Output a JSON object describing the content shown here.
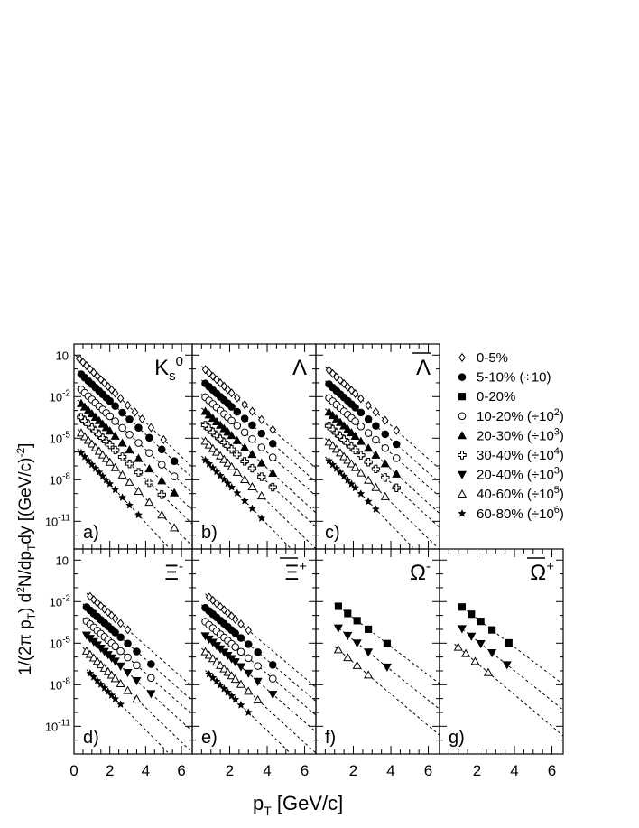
{
  "figure": {
    "ylabel_parts": [
      "1/(2π p",
      "T",
      ") d",
      "2",
      "N/dp",
      "T",
      "dy [(GeV/c)",
      "-2",
      "]"
    ],
    "xlabel_main": "p",
    "xlabel_sub": "T",
    "xlabel_unit": " [GeV/c]"
  },
  "legend": [
    {
      "marker": "diamond-open",
      "text": "0-5%",
      "sup": ""
    },
    {
      "marker": "circle-filled",
      "text": "5-10% (÷10)",
      "sup": ""
    },
    {
      "marker": "square-filled",
      "text": "0-20%",
      "sup": ""
    },
    {
      "marker": "circle-open",
      "text": "10-20% (÷10",
      "sup": "2",
      "tail": ")"
    },
    {
      "marker": "triangle-up-filled",
      "text": "20-30% (÷10",
      "sup": "3",
      "tail": ")"
    },
    {
      "marker": "cross-open",
      "text": "30-40% (÷10",
      "sup": "4",
      "tail": ")"
    },
    {
      "marker": "triangle-down-filled",
      "text": "20-40% (÷10",
      "sup": "3",
      "tail": ")"
    },
    {
      "marker": "triangle-up-open",
      "text": "40-60% (÷10",
      "sup": "5",
      "tail": ")"
    },
    {
      "marker": "star-filled",
      "text": "60-80% (÷10",
      "sup": "6",
      "tail": ")"
    }
  ],
  "chart_data": [
    {
      "panel": "a)",
      "particle": "K",
      "particle_sub": "s",
      "particle_sup": "0",
      "type": "scatter",
      "yscale": "log",
      "xlim": [
        0,
        6.6
      ],
      "xticks": [
        "0",
        "2",
        "4",
        "6"
      ],
      "ylim_exp": [
        -13,
        1.8
      ],
      "yticks": [
        "10",
        "10",
        "10",
        "10",
        "10"
      ],
      "ytick_sups": [
        "",
        "-2",
        "-5",
        "-8",
        "-11"
      ],
      "ytick_exps": [
        1,
        -2,
        -5,
        -8,
        -11
      ],
      "series": [
        {
          "marker": "diamond-open",
          "logN": 1.1,
          "T": 0.35,
          "x": [
            0.3,
            0.5,
            0.7,
            0.9,
            1.1,
            1.3,
            1.5,
            1.7,
            1.9,
            2.1,
            2.3,
            2.6,
            3.0,
            3.4,
            3.8,
            4.3,
            5.0
          ]
        },
        {
          "marker": "circle-filled",
          "logN": 0.1,
          "T": 0.36,
          "x": [
            0.4,
            0.6,
            0.8,
            1.0,
            1.2,
            1.4,
            1.6,
            1.8,
            2.0,
            2.3,
            2.7,
            3.1,
            3.6,
            4.2,
            4.9,
            5.6
          ]
        },
        {
          "marker": "circle-open",
          "logN": -1.0,
          "T": 0.36,
          "x": [
            0.4,
            0.6,
            0.8,
            1.0,
            1.2,
            1.4,
            1.6,
            1.8,
            2.0,
            2.3,
            2.7,
            3.1,
            3.6,
            4.2,
            4.9,
            5.6
          ]
        },
        {
          "marker": "triangle-up-filled",
          "logN": -2.0,
          "T": 0.35,
          "x": [
            0.4,
            0.6,
            0.8,
            1.0,
            1.2,
            1.4,
            1.6,
            1.8,
            2.0,
            2.3,
            2.7,
            3.1,
            3.6,
            4.2,
            4.9,
            5.6
          ]
        },
        {
          "marker": "cross-open",
          "logN": -3.0,
          "T": 0.35,
          "x": [
            0.4,
            0.6,
            0.8,
            1.0,
            1.2,
            1.4,
            1.6,
            1.8,
            2.0,
            2.3,
            2.7,
            3.1,
            3.6,
            4.2,
            4.9
          ]
        },
        {
          "marker": "triangle-up-open",
          "logN": -4.1,
          "T": 0.33,
          "x": [
            0.4,
            0.6,
            0.8,
            1.0,
            1.2,
            1.4,
            1.6,
            1.8,
            2.0,
            2.3,
            2.7,
            3.1,
            3.6,
            4.2,
            4.9,
            5.6
          ]
        },
        {
          "marker": "star-filled",
          "logN": -5.5,
          "T": 0.31,
          "x": [
            0.4,
            0.6,
            0.8,
            1.0,
            1.2,
            1.4,
            1.6,
            1.8,
            2.0,
            2.3,
            2.7,
            3.1,
            3.6
          ]
        }
      ]
    },
    {
      "panel": "b)",
      "particle": "Λ",
      "particle_sub": "",
      "particle_sup": "",
      "type": "scatter",
      "yscale": "log",
      "xlim": [
        0,
        6.6
      ],
      "xticks": [
        "",
        "2",
        "4",
        "6"
      ],
      "ylim_exp": [
        -13,
        1.8
      ],
      "series": [
        {
          "marker": "diamond-open",
          "logN": 0.8,
          "T": 0.36,
          "x": [
            0.7,
            0.9,
            1.1,
            1.3,
            1.5,
            1.7,
            1.9,
            2.1,
            2.4,
            2.8,
            3.2,
            3.7,
            4.3
          ]
        },
        {
          "marker": "circle-filled",
          "logN": -0.2,
          "T": 0.36,
          "x": [
            0.7,
            0.9,
            1.1,
            1.3,
            1.5,
            1.7,
            1.9,
            2.1,
            2.4,
            2.8,
            3.2,
            3.7,
            4.3
          ]
        },
        {
          "marker": "circle-open",
          "logN": -1.2,
          "T": 0.36,
          "x": [
            0.7,
            0.9,
            1.1,
            1.3,
            1.5,
            1.7,
            1.9,
            2.1,
            2.4,
            2.8,
            3.2,
            3.7,
            4.3
          ]
        },
        {
          "marker": "triangle-up-filled",
          "logN": -2.2,
          "T": 0.35,
          "x": [
            0.7,
            0.9,
            1.1,
            1.3,
            1.5,
            1.7,
            1.9,
            2.1,
            2.4,
            2.8,
            3.2,
            3.7,
            4.3
          ]
        },
        {
          "marker": "cross-open",
          "logN": -3.2,
          "T": 0.35,
          "x": [
            0.7,
            0.9,
            1.1,
            1.3,
            1.5,
            1.7,
            1.9,
            2.1,
            2.4,
            2.8,
            3.2,
            3.7,
            4.3
          ]
        },
        {
          "marker": "triangle-up-open",
          "logN": -4.3,
          "T": 0.33,
          "x": [
            0.7,
            0.9,
            1.1,
            1.3,
            1.5,
            1.7,
            1.9,
            2.1,
            2.4,
            2.8,
            3.2,
            3.7
          ]
        },
        {
          "marker": "star-filled",
          "logN": -5.6,
          "T": 0.31,
          "x": [
            0.7,
            0.9,
            1.1,
            1.3,
            1.5,
            1.7,
            1.9,
            2.1,
            2.4,
            2.8,
            3.2,
            3.7
          ]
        }
      ]
    },
    {
      "panel": "c)",
      "particle": "Λ",
      "particle_sub": "",
      "particle_sup": "",
      "overline": true,
      "type": "scatter",
      "yscale": "log",
      "xlim": [
        0,
        6.6
      ],
      "xticks": [
        "",
        "2",
        "4",
        "6"
      ],
      "ylim_exp": [
        -13,
        1.8
      ],
      "series": [
        {
          "marker": "diamond-open",
          "logN": 0.75,
          "T": 0.36,
          "x": [
            0.7,
            0.9,
            1.1,
            1.3,
            1.5,
            1.7,
            1.9,
            2.1,
            2.4,
            2.8,
            3.2,
            3.7,
            4.3
          ]
        },
        {
          "marker": "circle-filled",
          "logN": -0.25,
          "T": 0.36,
          "x": [
            0.7,
            0.9,
            1.1,
            1.3,
            1.5,
            1.7,
            1.9,
            2.1,
            2.4,
            2.8,
            3.2,
            3.7,
            4.3
          ]
        },
        {
          "marker": "circle-open",
          "logN": -1.25,
          "T": 0.36,
          "x": [
            0.7,
            0.9,
            1.1,
            1.3,
            1.5,
            1.7,
            1.9,
            2.1,
            2.4,
            2.8,
            3.2,
            3.7,
            4.3
          ]
        },
        {
          "marker": "triangle-up-filled",
          "logN": -2.25,
          "T": 0.35,
          "x": [
            0.7,
            0.9,
            1.1,
            1.3,
            1.5,
            1.7,
            1.9,
            2.1,
            2.4,
            2.8,
            3.2,
            3.7,
            4.3
          ]
        },
        {
          "marker": "cross-open",
          "logN": -3.25,
          "T": 0.35,
          "x": [
            0.7,
            0.9,
            1.1,
            1.3,
            1.5,
            1.7,
            1.9,
            2.1,
            2.4,
            2.8,
            3.2,
            3.7,
            4.3
          ]
        },
        {
          "marker": "triangle-up-open",
          "logN": -4.35,
          "T": 0.33,
          "x": [
            0.7,
            0.9,
            1.1,
            1.3,
            1.5,
            1.7,
            1.9,
            2.1,
            2.4,
            2.8,
            3.2,
            3.7
          ]
        },
        {
          "marker": "star-filled",
          "logN": -5.65,
          "T": 0.31,
          "x": [
            0.7,
            0.9,
            1.1,
            1.3,
            1.5,
            1.7,
            1.9,
            2.1,
            2.4,
            2.8,
            3.2
          ]
        }
      ]
    },
    {
      "panel": "d)",
      "particle": "Ξ",
      "particle_sub": "",
      "particle_sup": "-",
      "type": "scatter",
      "yscale": "log",
      "xlim": [
        0,
        6.6
      ],
      "xticks": [
        "0",
        "2",
        "4",
        "6"
      ],
      "ylim_exp": [
        -13,
        1.8
      ],
      "yticks": [
        "10",
        "10",
        "10",
        "10",
        "10"
      ],
      "ytick_sups": [
        "",
        "-2",
        "-5",
        "-8",
        "-11"
      ],
      "ytick_exps": [
        1,
        -2,
        -5,
        -8,
        -11
      ],
      "series": [
        {
          "marker": "diamond-open",
          "logN": -0.6,
          "T": 0.38,
          "x": [
            0.9,
            1.1,
            1.3,
            1.5,
            1.7,
            1.9,
            2.1,
            2.3,
            2.6,
            3.0
          ]
        },
        {
          "marker": "circle-filled",
          "logN": -1.6,
          "T": 0.38,
          "x": [
            0.7,
            0.9,
            1.1,
            1.3,
            1.5,
            1.7,
            1.9,
            2.1,
            2.3,
            2.6,
            3.0,
            3.5,
            4.3
          ]
        },
        {
          "marker": "circle-open",
          "logN": -2.6,
          "T": 0.38,
          "x": [
            0.7,
            0.9,
            1.1,
            1.3,
            1.5,
            1.7,
            1.9,
            2.1,
            2.3,
            2.6,
            3.0,
            3.5,
            4.3
          ]
        },
        {
          "marker": "triangle-down-filled",
          "logN": -3.6,
          "T": 0.37,
          "x": [
            0.7,
            0.9,
            1.1,
            1.3,
            1.5,
            1.7,
            1.9,
            2.1,
            2.3,
            2.6,
            3.0,
            3.5,
            4.3
          ]
        },
        {
          "marker": "triangle-up-open",
          "logN": -4.7,
          "T": 0.35,
          "x": [
            0.7,
            0.9,
            1.1,
            1.3,
            1.5,
            1.7,
            1.9,
            2.1,
            2.3,
            2.6,
            3.0,
            3.5
          ]
        },
        {
          "marker": "star-filled",
          "logN": -6.0,
          "T": 0.33,
          "x": [
            0.9,
            1.1,
            1.3,
            1.5,
            1.7,
            1.9,
            2.1,
            2.3,
            2.6
          ]
        }
      ]
    },
    {
      "panel": "e)",
      "particle": "Ξ",
      "particle_sub": "",
      "particle_sup": "+",
      "overline": true,
      "type": "scatter",
      "yscale": "log",
      "xlim": [
        0,
        6.6
      ],
      "xticks": [
        "",
        "2",
        "4",
        "6"
      ],
      "ylim_exp": [
        -13,
        1.8
      ],
      "series": [
        {
          "marker": "diamond-open",
          "logN": -0.65,
          "T": 0.38,
          "x": [
            0.9,
            1.1,
            1.3,
            1.5,
            1.7,
            1.9,
            2.1,
            2.3,
            2.6,
            3.0
          ]
        },
        {
          "marker": "circle-filled",
          "logN": -1.65,
          "T": 0.38,
          "x": [
            0.7,
            0.9,
            1.1,
            1.3,
            1.5,
            1.7,
            1.9,
            2.1,
            2.3,
            2.6,
            3.0,
            3.5,
            4.3
          ]
        },
        {
          "marker": "circle-open",
          "logN": -2.65,
          "T": 0.38,
          "x": [
            0.7,
            0.9,
            1.1,
            1.3,
            1.5,
            1.7,
            1.9,
            2.1,
            2.3,
            2.6,
            3.0,
            3.5,
            4.3
          ]
        },
        {
          "marker": "triangle-down-filled",
          "logN": -3.65,
          "T": 0.37,
          "x": [
            0.7,
            0.9,
            1.1,
            1.3,
            1.5,
            1.7,
            1.9,
            2.1,
            2.3,
            2.6,
            3.0,
            3.5,
            4.3
          ]
        },
        {
          "marker": "triangle-up-open",
          "logN": -4.75,
          "T": 0.35,
          "x": [
            0.7,
            0.9,
            1.1,
            1.3,
            1.5,
            1.7,
            1.9,
            2.1,
            2.3,
            2.6,
            3.0,
            3.5
          ]
        },
        {
          "marker": "star-filled",
          "logN": -6.05,
          "T": 0.33,
          "x": [
            0.9,
            1.1,
            1.3,
            1.5,
            1.7,
            1.9,
            2.1,
            2.3,
            2.6,
            3.0
          ]
        }
      ]
    },
    {
      "panel": "f)",
      "particle": "Ω",
      "particle_sub": "",
      "particle_sup": "-",
      "type": "scatter",
      "yscale": "log",
      "xlim": [
        0,
        6.6
      ],
      "xticks": [
        "",
        "2",
        "4",
        "6"
      ],
      "ylim_exp": [
        -13,
        1.8
      ],
      "series": [
        {
          "marker": "square-filled",
          "logN": -1.1,
          "T": 0.42,
          "x": [
            1.2,
            1.7,
            2.2,
            2.8,
            3.8
          ]
        },
        {
          "marker": "triangle-down-filled",
          "logN": -2.6,
          "T": 0.4,
          "x": [
            1.2,
            1.7,
            2.2,
            2.8,
            3.8
          ]
        },
        {
          "marker": "triangle-up-open",
          "logN": -4.1,
          "T": 0.38,
          "x": [
            1.2,
            1.7,
            2.2,
            2.8
          ]
        }
      ]
    },
    {
      "panel": "g)",
      "particle": "Ω",
      "particle_sub": "",
      "particle_sup": "+",
      "overline": true,
      "type": "scatter",
      "yscale": "log",
      "xlim": [
        0,
        6.6
      ],
      "xticks": [
        "",
        "2",
        "4",
        "6"
      ],
      "ylim_exp": [
        -13,
        1.8
      ],
      "series": [
        {
          "marker": "square-filled",
          "logN": -1.15,
          "T": 0.42,
          "x": [
            1.2,
            1.7,
            2.2,
            2.8,
            3.7
          ]
        },
        {
          "marker": "triangle-down-filled",
          "logN": -2.65,
          "T": 0.4,
          "x": [
            1.2,
            1.7,
            2.2,
            2.8,
            3.6
          ]
        },
        {
          "marker": "triangle-up-open",
          "logN": -4.15,
          "T": 0.38,
          "x": [
            1.0,
            1.4,
            1.9,
            2.6
          ]
        }
      ]
    }
  ]
}
